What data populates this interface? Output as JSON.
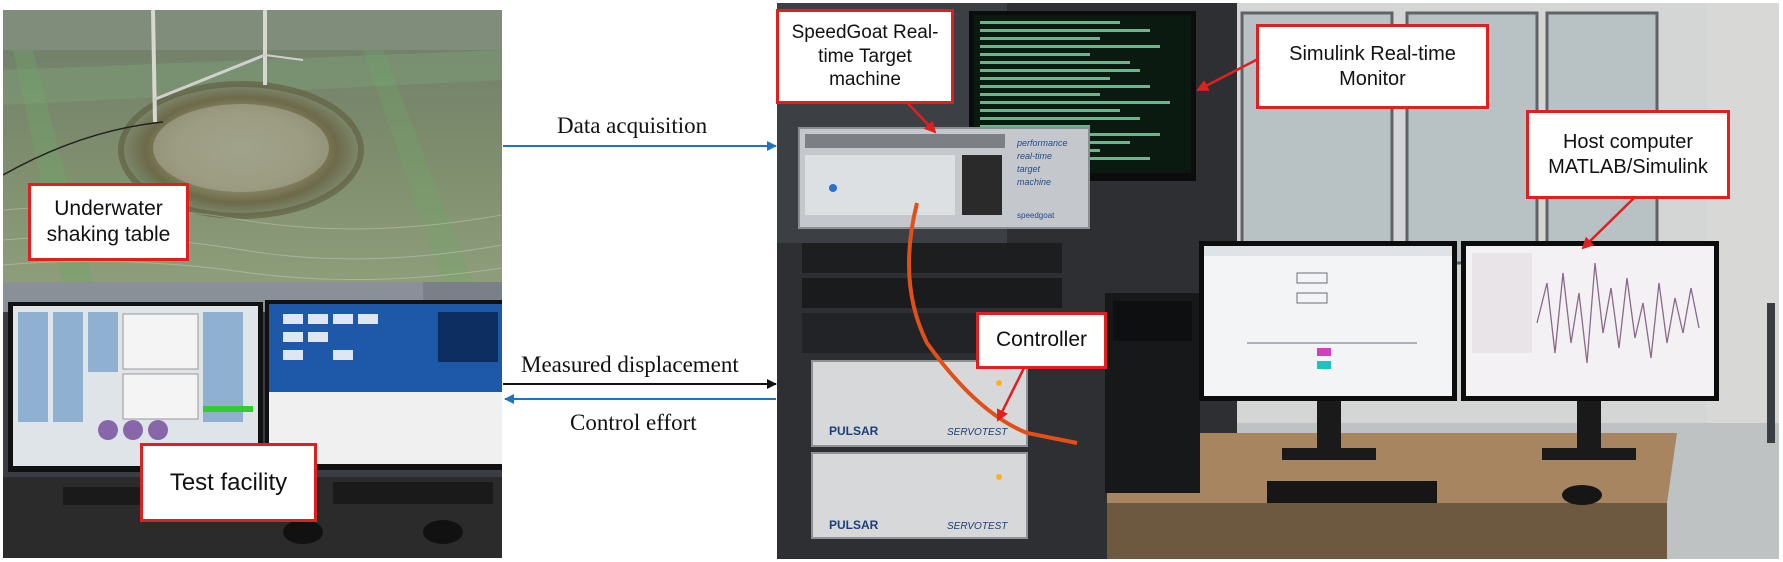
{
  "left_panel": {
    "shaking_table_label": "Underwater shaking table",
    "test_facility_label": "Test facility"
  },
  "connections": {
    "data_acquisition": "Data acquisition",
    "measured_displacement": "Measured displacement",
    "control_effort": "Control effort"
  },
  "right_panel": {
    "speedgoat_label": "SpeedGoat Real-time Target machine",
    "monitor_label": "Simulink Real-time Monitor",
    "host_label": "Host computer MATLAB/Simulink",
    "controller_label": "Controller",
    "chassis_brand": "performance real-time target machine",
    "chassis_logo": "speedgoat",
    "servo_brand_top": "PULSAR",
    "servo_model_top": "SERVOTEST",
    "servo_brand_bottom": "PULSAR",
    "servo_model_bottom": "SERVOTEST"
  },
  "colors": {
    "label_border": "#e01f1f",
    "arrow_blue": "#1f73c4",
    "arrow_black": "#111111",
    "annotation_red": "#e01f1f"
  }
}
